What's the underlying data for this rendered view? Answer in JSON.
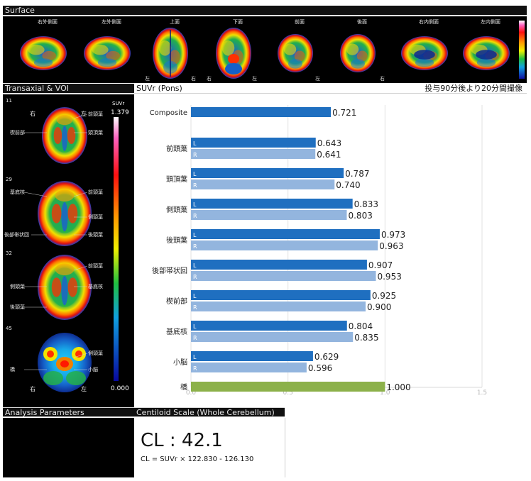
{
  "surface": {
    "header": "Surface",
    "views": [
      {
        "label": "右外側面",
        "type": "lat-r"
      },
      {
        "label": "左外側面",
        "type": "lat-l"
      },
      {
        "label": "上面",
        "type": "sup"
      },
      {
        "label": "下面",
        "type": "inf"
      },
      {
        "label": "前面",
        "type": "ant"
      },
      {
        "label": "後面",
        "type": "post"
      },
      {
        "label": "右内側面",
        "type": "med-r"
      },
      {
        "label": "左内側面",
        "type": "med-l"
      }
    ],
    "side_labels": [
      "左",
      "右",
      "右",
      "左",
      "左",
      "右"
    ]
  },
  "transaxial": {
    "header": "Transaxial & VOI",
    "scale_title": "SUVr",
    "scale_max": "1.379",
    "scale_min": "0.000",
    "top_right": "右",
    "top_left": "左",
    "bottom_right": "右",
    "bottom_left": "左",
    "slices": [
      {
        "number": "11",
        "labels": [
          {
            "text": "前頭葉",
            "side": "right",
            "row": 0
          },
          {
            "text": "楔前部",
            "side": "left",
            "row": 1
          },
          {
            "text": "頭頂葉",
            "side": "right",
            "row": 1
          }
        ]
      },
      {
        "number": "29",
        "labels": [
          {
            "text": "基底核",
            "side": "left",
            "row": 0
          },
          {
            "text": "前頭葉",
            "side": "right",
            "row": 0
          },
          {
            "text": "側頭葉",
            "side": "right",
            "row": 1
          },
          {
            "text": "後部帯状回",
            "side": "left",
            "row": 2
          },
          {
            "text": "後頭葉",
            "side": "right",
            "row": 2
          }
        ]
      },
      {
        "number": "32",
        "labels": [
          {
            "text": "前頭葉",
            "side": "right",
            "row": 0
          },
          {
            "text": "基底核",
            "side": "right",
            "row": 1
          },
          {
            "text": "側頭葉",
            "side": "left",
            "row": 1
          },
          {
            "text": "後頭葉",
            "side": "left",
            "row": 2
          }
        ]
      },
      {
        "number": "45",
        "labels": [
          {
            "text": "側頭葉",
            "side": "right",
            "row": 0
          },
          {
            "text": "橋",
            "side": "left",
            "row": 1
          },
          {
            "text": "小脳",
            "side": "right",
            "row": 1
          }
        ]
      }
    ]
  },
  "suvr_panel": {
    "header": "SUVr (Pons)",
    "note": "投与90分後より20分間撮像"
  },
  "colors": {
    "composite": "#1f6fc0",
    "left_bar": "#1f6fc0",
    "right_bar": "#93b5de",
    "pons": "#8cb14a"
  },
  "chart_data": {
    "type": "bar",
    "orientation": "horizontal",
    "xlim": [
      0,
      1.5
    ],
    "ticks": [
      "0.0",
      "0.5",
      "1.0",
      "1.5"
    ],
    "groups": [
      {
        "name": "Composite",
        "bars": [
          {
            "side": "",
            "value": 0.721,
            "label": "0.721",
            "kind": "composite"
          }
        ]
      },
      {
        "name": "前頭葉",
        "bars": [
          {
            "side": "L",
            "value": 0.643,
            "label": "0.643",
            "kind": "left"
          },
          {
            "side": "R",
            "value": 0.641,
            "label": "0.641",
            "kind": "right"
          }
        ]
      },
      {
        "name": "頭頂葉",
        "bars": [
          {
            "side": "L",
            "value": 0.787,
            "label": "0.787",
            "kind": "left"
          },
          {
            "side": "R",
            "value": 0.74,
            "label": "0.740",
            "kind": "right"
          }
        ]
      },
      {
        "name": "側頭葉",
        "bars": [
          {
            "side": "L",
            "value": 0.833,
            "label": "0.833",
            "kind": "left"
          },
          {
            "side": "R",
            "value": 0.803,
            "label": "0.803",
            "kind": "right"
          }
        ]
      },
      {
        "name": "後頭葉",
        "bars": [
          {
            "side": "L",
            "value": 0.973,
            "label": "0.973",
            "kind": "left"
          },
          {
            "side": "R",
            "value": 0.963,
            "label": "0.963",
            "kind": "right"
          }
        ]
      },
      {
        "name": "後部帯状回",
        "bars": [
          {
            "side": "L",
            "value": 0.907,
            "label": "0.907",
            "kind": "left"
          },
          {
            "side": "R",
            "value": 0.953,
            "label": "0.953",
            "kind": "right"
          }
        ]
      },
      {
        "name": "楔前部",
        "bars": [
          {
            "side": "L",
            "value": 0.925,
            "label": "0.925",
            "kind": "left"
          },
          {
            "side": "R",
            "value": 0.9,
            "label": "0.900",
            "kind": "right"
          }
        ]
      },
      {
        "name": "基底核",
        "bars": [
          {
            "side": "L",
            "value": 0.804,
            "label": "0.804",
            "kind": "left"
          },
          {
            "side": "R",
            "value": 0.835,
            "label": "0.835",
            "kind": "right"
          }
        ]
      },
      {
        "name": "小脳",
        "bars": [
          {
            "side": "L",
            "value": 0.629,
            "label": "0.629",
            "kind": "left"
          },
          {
            "side": "R",
            "value": 0.596,
            "label": "0.596",
            "kind": "right"
          }
        ]
      },
      {
        "name": "橋",
        "bars": [
          {
            "side": "",
            "value": 1.0,
            "label": "1.000",
            "kind": "pons"
          }
        ]
      }
    ]
  },
  "analysis": {
    "header": "Analysis Parameters"
  },
  "centiloid": {
    "header": "Centiloid Scale (Whole Cerebellum)",
    "value_text": "CL : 42.1",
    "formula": "CL = SUVr × 122.830 - 126.130"
  }
}
